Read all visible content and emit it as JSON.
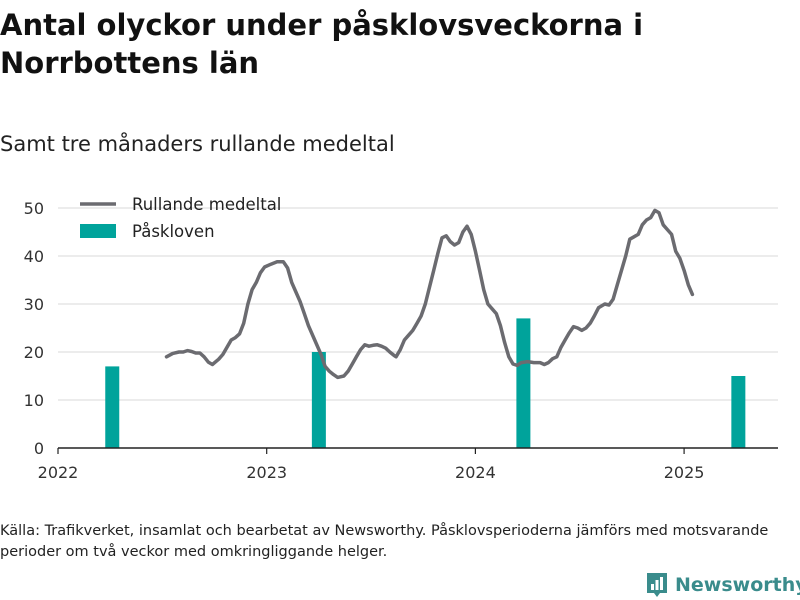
{
  "title": "Antal olyckor under påsklovsveckorna i Norrbottens län",
  "subtitle": "Samt tre månaders rullande medeltal",
  "source": "Källa: Trafikverket, insamlat och bearbetat av Newsworthy. Påsklovsperioderna jämförs med motsvarande perioder om två veckor med omkringliggande helger.",
  "logo": {
    "text": "Newsworthy",
    "icon": "chart-logo-icon"
  },
  "colors": {
    "line": "#6b6b70",
    "bar": "#00a39b",
    "grid": "#d9d9d9",
    "axis": "#222222",
    "logo": "#3a8c8c"
  },
  "chart_data": {
    "type": "bar+line",
    "xlim": [
      2022.0,
      2025.45
    ],
    "ylim": [
      0,
      52
    ],
    "yticks": [
      0,
      10,
      20,
      30,
      40,
      50
    ],
    "xticks": [
      2022,
      2023,
      2024,
      2025
    ],
    "grid": true,
    "legend_position": "top-left",
    "series": [
      {
        "name": "Rullande medeltal",
        "type": "line",
        "points": [
          [
            2022.52,
            19
          ],
          [
            2022.55,
            19.7
          ],
          [
            2022.58,
            20
          ],
          [
            2022.6,
            20
          ],
          [
            2022.62,
            20.3
          ],
          [
            2022.64,
            20.1
          ],
          [
            2022.66,
            19.8
          ],
          [
            2022.68,
            19.8
          ],
          [
            2022.7,
            19
          ],
          [
            2022.72,
            17.9
          ],
          [
            2022.74,
            17.4
          ],
          [
            2022.77,
            18.5
          ],
          [
            2022.79,
            19.5
          ],
          [
            2022.81,
            21
          ],
          [
            2022.83,
            22.5
          ],
          [
            2022.85,
            23
          ],
          [
            2022.87,
            23.8
          ],
          [
            2022.89,
            26
          ],
          [
            2022.91,
            30
          ],
          [
            2022.93,
            33
          ],
          [
            2022.95,
            34.5
          ],
          [
            2022.97,
            36.5
          ],
          [
            2022.99,
            37.7
          ],
          [
            2023.02,
            38.3
          ],
          [
            2023.05,
            38.8
          ],
          [
            2023.08,
            38.8
          ],
          [
            2023.1,
            37.5
          ],
          [
            2023.12,
            34.5
          ],
          [
            2023.14,
            32.5
          ],
          [
            2023.16,
            30.5
          ],
          [
            2023.18,
            28
          ],
          [
            2023.2,
            25.5
          ],
          [
            2023.23,
            22.5
          ],
          [
            2023.26,
            19.5
          ],
          [
            2023.28,
            17
          ],
          [
            2023.3,
            16
          ],
          [
            2023.32,
            15.3
          ],
          [
            2023.34,
            14.7
          ],
          [
            2023.37,
            15
          ],
          [
            2023.39,
            16
          ],
          [
            2023.41,
            17.5
          ],
          [
            2023.43,
            19
          ],
          [
            2023.45,
            20.5
          ],
          [
            2023.47,
            21.5
          ],
          [
            2023.49,
            21.2
          ],
          [
            2023.51,
            21.4
          ],
          [
            2023.53,
            21.5
          ],
          [
            2023.55,
            21.2
          ],
          [
            2023.57,
            20.8
          ],
          [
            2023.59,
            20
          ],
          [
            2023.61,
            19.3
          ],
          [
            2023.62,
            19
          ],
          [
            2023.64,
            20.5
          ],
          [
            2023.66,
            22.5
          ],
          [
            2023.68,
            23.5
          ],
          [
            2023.7,
            24.5
          ],
          [
            2023.72,
            26
          ],
          [
            2023.74,
            27.5
          ],
          [
            2023.76,
            30
          ],
          [
            2023.78,
            33.5
          ],
          [
            2023.8,
            37
          ],
          [
            2023.82,
            40.5
          ],
          [
            2023.84,
            43.8
          ],
          [
            2023.86,
            44.2
          ],
          [
            2023.88,
            43
          ],
          [
            2023.9,
            42.3
          ],
          [
            2023.92,
            42.8
          ],
          [
            2023.94,
            45
          ],
          [
            2023.96,
            46.2
          ],
          [
            2023.98,
            44.5
          ],
          [
            2024.0,
            41
          ],
          [
            2024.02,
            37
          ],
          [
            2024.04,
            33
          ],
          [
            2024.06,
            30
          ],
          [
            2024.08,
            29
          ],
          [
            2024.1,
            28
          ],
          [
            2024.12,
            25.5
          ],
          [
            2024.14,
            22
          ],
          [
            2024.16,
            19
          ],
          [
            2024.18,
            17.5
          ],
          [
            2024.2,
            17.2
          ],
          [
            2024.22,
            17.8
          ],
          [
            2024.25,
            18
          ],
          [
            2024.28,
            17.8
          ],
          [
            2024.31,
            17.8
          ],
          [
            2024.33,
            17.4
          ],
          [
            2024.35,
            17.8
          ],
          [
            2024.37,
            18.6
          ],
          [
            2024.39,
            19
          ],
          [
            2024.41,
            21
          ],
          [
            2024.43,
            22.5
          ],
          [
            2024.45,
            24
          ],
          [
            2024.47,
            25.3
          ],
          [
            2024.49,
            25
          ],
          [
            2024.51,
            24.5
          ],
          [
            2024.53,
            25
          ],
          [
            2024.55,
            26
          ],
          [
            2024.57,
            27.5
          ],
          [
            2024.59,
            29.2
          ],
          [
            2024.62,
            30
          ],
          [
            2024.64,
            29.8
          ],
          [
            2024.66,
            31
          ],
          [
            2024.68,
            34
          ],
          [
            2024.7,
            37
          ],
          [
            2024.72,
            40
          ],
          [
            2024.74,
            43.5
          ],
          [
            2024.76,
            44
          ],
          [
            2024.78,
            44.5
          ],
          [
            2024.8,
            46.5
          ],
          [
            2024.82,
            47.5
          ],
          [
            2024.84,
            48
          ],
          [
            2024.86,
            49.5
          ],
          [
            2024.88,
            49
          ],
          [
            2024.9,
            46.5
          ],
          [
            2024.92,
            45.5
          ],
          [
            2024.94,
            44.5
          ],
          [
            2024.96,
            41
          ],
          [
            2024.98,
            39.5
          ],
          [
            2025.0,
            37
          ],
          [
            2025.02,
            34
          ],
          [
            2025.04,
            32
          ]
        ]
      },
      {
        "name": "Påskloven",
        "type": "bar",
        "points": [
          [
            2022.26,
            17
          ],
          [
            2023.25,
            20
          ],
          [
            2024.23,
            27
          ],
          [
            2025.26,
            15
          ]
        ]
      }
    ]
  }
}
